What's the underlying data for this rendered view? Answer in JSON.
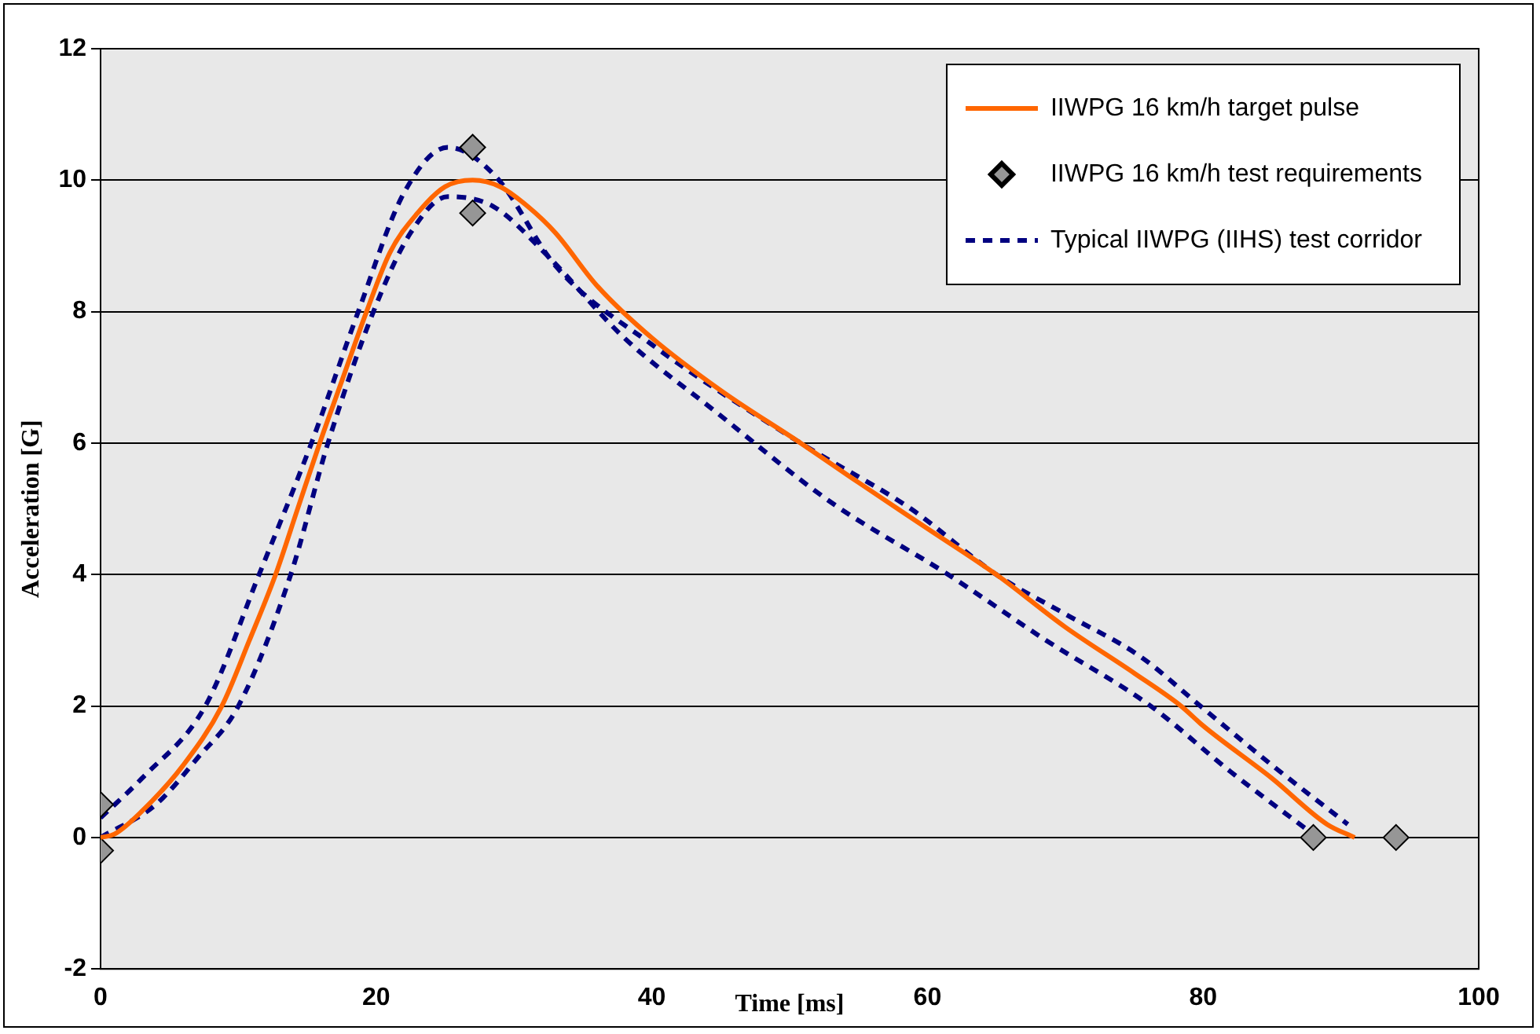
{
  "chart_data": {
    "type": "line",
    "xlabel": "Time [ms]",
    "ylabel": "Acceleration [G]",
    "xlim": [
      0,
      100
    ],
    "xticks": [
      0,
      20,
      40,
      60,
      80,
      100
    ],
    "ylim": [
      -2,
      12
    ],
    "yticks": [
      -2,
      0,
      2,
      4,
      6,
      8,
      10,
      12
    ],
    "grid": "y",
    "legend": "top right",
    "series": [
      {
        "name": "IIWPG 16 km/h target pulse",
        "color": "#ff6600",
        "line_style": "solid",
        "marker": "none",
        "x": [
          0,
          1,
          3,
          6,
          8.8,
          10.8,
          12.7,
          14.3,
          15.9,
          17.6,
          19.3,
          21,
          23,
          25,
          27,
          29,
          31,
          33,
          36,
          40,
          45,
          50.8,
          55,
          60,
          65,
          70,
          75,
          78.4,
          80,
          85,
          89,
          91
        ],
        "values": [
          0,
          0.05,
          0.4,
          1.1,
          2,
          3,
          4,
          5,
          6,
          7,
          8,
          8.9,
          9.5,
          9.9,
          10,
          9.9,
          9.6,
          9.2,
          8.4,
          7.6,
          6.8,
          6,
          5.4,
          4.7,
          4,
          3.2,
          2.5,
          2,
          1.7,
          0.9,
          0.2,
          0
        ]
      },
      {
        "name": "IIWPG 16 km/h test requirements",
        "type": "scatter",
        "color": "#969696",
        "marker": "diamond",
        "x": [
          0,
          0,
          27,
          27,
          88,
          94
        ],
        "values": [
          0.5,
          -0.2,
          10.5,
          9.5,
          0,
          0
        ]
      },
      {
        "name": "Typical IIWPG (IIHS) test corridor",
        "color": "#000080",
        "line_style": "dashed",
        "marker": "none",
        "x": [
          0,
          3,
          7.6,
          11.5,
          15.3,
          18.7,
          22,
          25.2,
          28.7,
          33,
          40,
          50.8,
          58.8,
          65,
          70,
          75.4,
          79.8,
          85,
          90.5
        ],
        "values": [
          0.3,
          0.9,
          2,
          4,
          6,
          8,
          9.8,
          10.5,
          10.05,
          8.7,
          7.5,
          6,
          5,
          4,
          3.4,
          2.76,
          2,
          1.1,
          0.2
        ]
      },
      {
        "color": "#000080",
        "line_style": "dashed",
        "marker": "none",
        "x": [
          0,
          4,
          7,
          10,
          13.8,
          16.5,
          19.8,
          22.5,
          25.2,
          28.5,
          32.2,
          38,
          44.5,
          53,
          61.5,
          68.6,
          76.2,
          82,
          88.3
        ],
        "values": [
          0,
          0.5,
          1.2,
          2,
          4,
          6,
          8,
          9.2,
          9.75,
          9.6,
          8.9,
          7.6,
          6.5,
          5.1,
          4,
          3,
          2,
          1,
          0
        ]
      }
    ]
  }
}
